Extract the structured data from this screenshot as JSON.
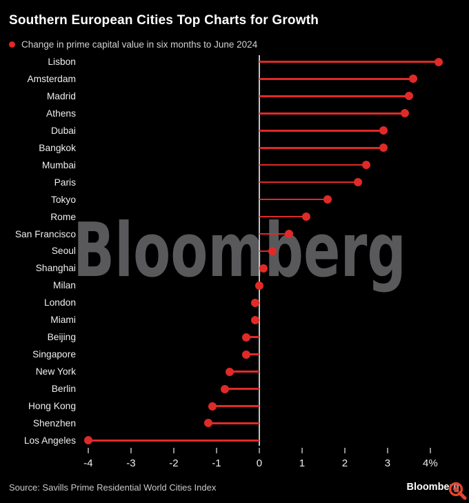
{
  "header": {
    "title": "Southern European Cities Top Charts for Growth"
  },
  "legend": {
    "label": "Change in prime capital value in six months to June 2024"
  },
  "watermark": {
    "text": "Bloomberg"
  },
  "footer": {
    "source": "Source: Savills Prime Residential World Cities Index",
    "brand": "Bloomberg"
  },
  "icons": {
    "zoom": "magnifier-plus-icon"
  },
  "colors": {
    "background": "#000000",
    "accent_red": "#e02a28",
    "zero_axis_line": "#c4c4c4",
    "tick": "#8f8f8f",
    "tick_label": "#ededed",
    "category_label": "#efefef",
    "title_text": "#ffffff",
    "legend_text": "#d2d2d2",
    "source_text": "#c9c9c9",
    "watermark_gray": "#59595b",
    "magnifier_orange": "#e8442b"
  },
  "chart_data": {
    "type": "bar",
    "variant": "horizontal-lollipop",
    "title": "Southern European Cities Top Charts for Growth",
    "series_label": "Change in prime capital value in six months to June 2024",
    "unit": "%",
    "categories": [
      "Lisbon",
      "Amsterdam",
      "Madrid",
      "Athens",
      "Dubai",
      "Bangkok",
      "Mumbai",
      "Paris",
      "Tokyo",
      "Rome",
      "San Francisco",
      "Seoul",
      "Shanghai",
      "Milan",
      "London",
      "Miami",
      "Beijing",
      "Singapore",
      "New York",
      "Berlin",
      "Hong Kong",
      "Shenzhen",
      "Los Angeles"
    ],
    "values": [
      4.2,
      3.6,
      3.5,
      3.4,
      2.9,
      2.9,
      2.5,
      2.3,
      1.6,
      1.1,
      0.7,
      0.3,
      0.1,
      0.0,
      -0.1,
      -0.1,
      -0.3,
      -0.3,
      -0.7,
      -0.8,
      -1.1,
      -1.2,
      -4.0
    ],
    "x_ticks": [
      -4,
      -3,
      -2,
      -1,
      0,
      1,
      2,
      3,
      4
    ],
    "x_tick_labels": [
      "-4",
      "-3",
      "-2",
      "-1",
      "0",
      "1",
      "2",
      "3",
      "4%"
    ],
    "xlim": [
      -4.55,
      4.9
    ],
    "grid": false,
    "legend_position": "top-left",
    "zero_baseline": true
  }
}
